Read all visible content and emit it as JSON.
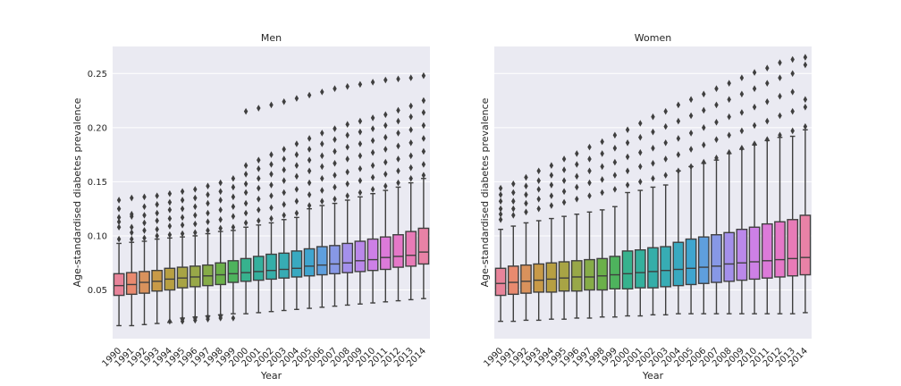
{
  "chart_data": [
    {
      "type": "box",
      "title": "Men",
      "xlabel": "Year",
      "ylabel": "Age-standardised diabetes prevalence",
      "ylim": [
        0.005,
        0.275
      ],
      "yticks": [
        "0.05",
        "0.10",
        "0.15",
        "0.20",
        "0.25"
      ],
      "ytick_values": [
        0.05,
        0.1,
        0.15,
        0.2,
        0.25
      ],
      "grid": true,
      "categories": [
        "1990",
        "1991",
        "1992",
        "1993",
        "1994",
        "1995",
        "1996",
        "1997",
        "1998",
        "1999",
        "2000",
        "2001",
        "2002",
        "2003",
        "2004",
        "2005",
        "2006",
        "2007",
        "2008",
        "2009",
        "2010",
        "2011",
        "2012",
        "2013",
        "2014"
      ],
      "boxes": [
        {
          "year": "1990",
          "whislo": 0.017,
          "q1": 0.045,
          "med": 0.054,
          "q3": 0.065,
          "whishi": 0.093,
          "fliers": [
            0.097,
            0.108,
            0.113,
            0.117,
            0.125,
            0.133
          ]
        },
        {
          "year": "1991",
          "whislo": 0.017,
          "q1": 0.046,
          "med": 0.055,
          "q3": 0.066,
          "whishi": 0.094,
          "fliers": [
            0.097,
            0.103,
            0.108,
            0.118,
            0.12,
            0.135
          ]
        },
        {
          "year": "1992",
          "whislo": 0.018,
          "q1": 0.047,
          "med": 0.057,
          "q3": 0.067,
          "whishi": 0.095,
          "fliers": [
            0.098,
            0.105,
            0.112,
            0.119,
            0.127,
            0.136
          ]
        },
        {
          "year": "1993",
          "whislo": 0.019,
          "q1": 0.049,
          "med": 0.058,
          "q3": 0.068,
          "whishi": 0.097,
          "fliers": [
            0.1,
            0.106,
            0.114,
            0.121,
            0.129,
            0.137
          ]
        },
        {
          "year": "1994",
          "whislo": 0.02,
          "q1": 0.05,
          "med": 0.06,
          "q3": 0.07,
          "whishi": 0.098,
          "fliers": [
            0.021,
            0.101,
            0.109,
            0.116,
            0.124,
            0.131,
            0.139
          ]
        },
        {
          "year": "1995",
          "whislo": 0.024,
          "q1": 0.052,
          "med": 0.061,
          "q3": 0.071,
          "whishi": 0.099,
          "fliers": [
            0.021,
            0.023,
            0.102,
            0.11,
            0.117,
            0.125,
            0.133,
            0.141
          ]
        },
        {
          "year": "1996",
          "whislo": 0.025,
          "q1": 0.053,
          "med": 0.062,
          "q3": 0.072,
          "whishi": 0.1,
          "fliers": [
            0.022,
            0.024,
            0.103,
            0.111,
            0.119,
            0.127,
            0.135,
            0.143
          ]
        },
        {
          "year": "1997",
          "whislo": 0.026,
          "q1": 0.054,
          "med": 0.063,
          "q3": 0.073,
          "whishi": 0.102,
          "fliers": [
            0.023,
            0.025,
            0.105,
            0.113,
            0.121,
            0.13,
            0.138,
            0.146
          ]
        },
        {
          "year": "1998",
          "whislo": 0.027,
          "q1": 0.055,
          "med": 0.064,
          "q3": 0.075,
          "whishi": 0.104,
          "fliers": [
            0.024,
            0.026,
            0.107,
            0.115,
            0.124,
            0.133,
            0.141,
            0.149
          ]
        },
        {
          "year": "1999",
          "whislo": 0.028,
          "q1": 0.057,
          "med": 0.065,
          "q3": 0.077,
          "whishi": 0.105,
          "fliers": [
            0.024,
            0.108,
            0.118,
            0.127,
            0.136,
            0.145,
            0.153
          ]
        },
        {
          "year": "2000",
          "whislo": 0.028,
          "q1": 0.058,
          "med": 0.066,
          "q3": 0.079,
          "whishi": 0.108,
          "fliers": [
            0.112,
            0.121,
            0.13,
            0.14,
            0.148,
            0.157,
            0.165,
            0.215
          ]
        },
        {
          "year": "2001",
          "whislo": 0.029,
          "q1": 0.059,
          "med": 0.067,
          "q3": 0.081,
          "whishi": 0.11,
          "fliers": [
            0.114,
            0.124,
            0.134,
            0.144,
            0.153,
            0.162,
            0.17,
            0.218
          ]
        },
        {
          "year": "2002",
          "whislo": 0.03,
          "q1": 0.06,
          "med": 0.068,
          "q3": 0.083,
          "whishi": 0.112,
          "fliers": [
            0.116,
            0.126,
            0.137,
            0.147,
            0.157,
            0.166,
            0.175,
            0.221
          ]
        },
        {
          "year": "2003",
          "whislo": 0.031,
          "q1": 0.061,
          "med": 0.069,
          "q3": 0.084,
          "whishi": 0.115,
          "fliers": [
            0.119,
            0.129,
            0.14,
            0.151,
            0.161,
            0.171,
            0.18,
            0.224
          ]
        },
        {
          "year": "2004",
          "whislo": 0.032,
          "q1": 0.062,
          "med": 0.07,
          "q3": 0.086,
          "whishi": 0.117,
          "fliers": [
            0.121,
            0.132,
            0.143,
            0.155,
            0.165,
            0.175,
            0.185,
            0.227
          ]
        },
        {
          "year": "2005",
          "whislo": 0.033,
          "q1": 0.063,
          "med": 0.072,
          "q3": 0.088,
          "whishi": 0.125,
          "fliers": [
            0.128,
            0.138,
            0.149,
            0.16,
            0.17,
            0.18,
            0.19,
            0.23
          ]
        },
        {
          "year": "2006",
          "whislo": 0.034,
          "q1": 0.064,
          "med": 0.073,
          "q3": 0.09,
          "whishi": 0.128,
          "fliers": [
            0.132,
            0.142,
            0.153,
            0.164,
            0.174,
            0.185,
            0.195,
            0.233
          ]
        },
        {
          "year": "2007",
          "whislo": 0.035,
          "q1": 0.065,
          "med": 0.074,
          "q3": 0.091,
          "whishi": 0.13,
          "fliers": [
            0.134,
            0.145,
            0.156,
            0.167,
            0.178,
            0.189,
            0.199,
            0.236
          ]
        },
        {
          "year": "2008",
          "whislo": 0.036,
          "q1": 0.066,
          "med": 0.075,
          "q3": 0.093,
          "whishi": 0.133,
          "fliers": [
            0.137,
            0.148,
            0.159,
            0.171,
            0.182,
            0.193,
            0.203,
            0.238
          ]
        },
        {
          "year": "2009",
          "whislo": 0.037,
          "q1": 0.067,
          "med": 0.077,
          "q3": 0.095,
          "whishi": 0.136,
          "fliers": [
            0.14,
            0.151,
            0.162,
            0.174,
            0.185,
            0.196,
            0.206,
            0.24
          ]
        },
        {
          "year": "2010",
          "whislo": 0.038,
          "q1": 0.068,
          "med": 0.078,
          "q3": 0.097,
          "whishi": 0.139,
          "fliers": [
            0.143,
            0.154,
            0.165,
            0.177,
            0.188,
            0.199,
            0.209,
            0.242
          ]
        },
        {
          "year": "2011",
          "whislo": 0.039,
          "q1": 0.069,
          "med": 0.08,
          "q3": 0.099,
          "whishi": 0.142,
          "fliers": [
            0.146,
            0.157,
            0.168,
            0.18,
            0.191,
            0.202,
            0.212,
            0.244
          ]
        },
        {
          "year": "2012",
          "whislo": 0.04,
          "q1": 0.071,
          "med": 0.081,
          "q3": 0.101,
          "whishi": 0.145,
          "fliers": [
            0.149,
            0.16,
            0.171,
            0.183,
            0.195,
            0.206,
            0.216,
            0.245
          ]
        },
        {
          "year": "2013",
          "whislo": 0.041,
          "q1": 0.072,
          "med": 0.082,
          "q3": 0.104,
          "whishi": 0.149,
          "fliers": [
            0.153,
            0.163,
            0.174,
            0.186,
            0.198,
            0.21,
            0.22,
            0.246
          ]
        },
        {
          "year": "2014",
          "whislo": 0.042,
          "q1": 0.074,
          "med": 0.085,
          "q3": 0.107,
          "whishi": 0.153,
          "fliers": [
            0.156,
            0.166,
            0.178,
            0.19,
            0.202,
            0.214,
            0.225,
            0.248
          ]
        }
      ]
    },
    {
      "type": "box",
      "title": "Women",
      "xlabel": "Year",
      "ylabel": "Age-standardised diabetes prevalence",
      "ylim": [
        0.005,
        0.275
      ],
      "yticks": [
        "0.05",
        "0.10",
        "0.15",
        "0.20",
        "0.25"
      ],
      "ytick_values": [
        0.05,
        0.1,
        0.15,
        0.2,
        0.25
      ],
      "grid": true,
      "categories": [
        "1990",
        "1991",
        "1992",
        "1993",
        "1994",
        "1995",
        "1996",
        "1997",
        "1998",
        "1999",
        "2000",
        "2001",
        "2002",
        "2003",
        "2004",
        "2005",
        "2006",
        "2007",
        "2008",
        "2009",
        "2010",
        "2011",
        "2012",
        "2013",
        "2014"
      ],
      "boxes": [
        {
          "year": "1990",
          "whislo": 0.021,
          "q1": 0.045,
          "med": 0.056,
          "q3": 0.07,
          "whishi": 0.106,
          "fliers": [
            0.115,
            0.12,
            0.125,
            0.132,
            0.138,
            0.144
          ]
        },
        {
          "year": "1991",
          "whislo": 0.021,
          "q1": 0.046,
          "med": 0.057,
          "q3": 0.072,
          "whishi": 0.109,
          "fliers": [
            0.119,
            0.125,
            0.132,
            0.14,
            0.148
          ]
        },
        {
          "year": "1992",
          "whislo": 0.022,
          "q1": 0.047,
          "med": 0.058,
          "q3": 0.073,
          "whishi": 0.112,
          "fliers": [
            0.122,
            0.13,
            0.138,
            0.146,
            0.154
          ]
        },
        {
          "year": "1993",
          "whislo": 0.022,
          "q1": 0.048,
          "med": 0.059,
          "q3": 0.074,
          "whishi": 0.114,
          "fliers": [
            0.125,
            0.134,
            0.143,
            0.151,
            0.16
          ]
        },
        {
          "year": "1994",
          "whislo": 0.023,
          "q1": 0.048,
          "med": 0.06,
          "q3": 0.075,
          "whishi": 0.116,
          "fliers": [
            0.128,
            0.137,
            0.147,
            0.156,
            0.165
          ]
        },
        {
          "year": "1995",
          "whislo": 0.023,
          "q1": 0.049,
          "med": 0.061,
          "q3": 0.076,
          "whishi": 0.118,
          "fliers": [
            0.131,
            0.141,
            0.151,
            0.161,
            0.171
          ]
        },
        {
          "year": "1996",
          "whislo": 0.024,
          "q1": 0.049,
          "med": 0.062,
          "q3": 0.077,
          "whishi": 0.12,
          "fliers": [
            0.134,
            0.145,
            0.155,
            0.166,
            0.176
          ]
        },
        {
          "year": "1997",
          "whislo": 0.024,
          "q1": 0.05,
          "med": 0.062,
          "q3": 0.078,
          "whishi": 0.122,
          "fliers": [
            0.137,
            0.149,
            0.16,
            0.171,
            0.182
          ]
        },
        {
          "year": "1998",
          "whislo": 0.025,
          "q1": 0.05,
          "med": 0.063,
          "q3": 0.079,
          "whishi": 0.124,
          "fliers": [
            0.14,
            0.152,
            0.164,
            0.176,
            0.187
          ]
        },
        {
          "year": "1999",
          "whislo": 0.025,
          "q1": 0.051,
          "med": 0.064,
          "q3": 0.081,
          "whishi": 0.127,
          "fliers": [
            0.143,
            0.156,
            0.168,
            0.181,
            0.193
          ]
        },
        {
          "year": "2000",
          "whislo": 0.026,
          "q1": 0.051,
          "med": 0.065,
          "q3": 0.086,
          "whishi": 0.14,
          "fliers": [
            0.147,
            0.16,
            0.173,
            0.186,
            0.198
          ]
        },
        {
          "year": "2001",
          "whislo": 0.026,
          "q1": 0.052,
          "med": 0.066,
          "q3": 0.087,
          "whishi": 0.142,
          "fliers": [
            0.15,
            0.164,
            0.177,
            0.191,
            0.204
          ]
        },
        {
          "year": "2002",
          "whislo": 0.027,
          "q1": 0.052,
          "med": 0.067,
          "q3": 0.089,
          "whishi": 0.145,
          "fliers": [
            0.153,
            0.167,
            0.181,
            0.196,
            0.21
          ]
        },
        {
          "year": "2003",
          "whislo": 0.027,
          "q1": 0.053,
          "med": 0.068,
          "q3": 0.09,
          "whishi": 0.147,
          "fliers": [
            0.156,
            0.171,
            0.186,
            0.201,
            0.215
          ]
        },
        {
          "year": "2004",
          "whislo": 0.028,
          "q1": 0.054,
          "med": 0.069,
          "q3": 0.094,
          "whishi": 0.16,
          "fliers": [
            0.16,
            0.175,
            0.19,
            0.206,
            0.221
          ]
        },
        {
          "year": "2005",
          "whislo": 0.028,
          "q1": 0.055,
          "med": 0.07,
          "q3": 0.097,
          "whishi": 0.164,
          "fliers": [
            0.164,
            0.18,
            0.195,
            0.211,
            0.226
          ]
        },
        {
          "year": "2006",
          "whislo": 0.028,
          "q1": 0.056,
          "med": 0.071,
          "q3": 0.099,
          "whishi": 0.167,
          "fliers": [
            0.168,
            0.184,
            0.2,
            0.216,
            0.231
          ]
        },
        {
          "year": "2007",
          "whislo": 0.028,
          "q1": 0.057,
          "med": 0.072,
          "q3": 0.101,
          "whishi": 0.17,
          "fliers": [
            0.172,
            0.189,
            0.205,
            0.221,
            0.236
          ]
        },
        {
          "year": "2008",
          "whislo": 0.028,
          "q1": 0.058,
          "med": 0.074,
          "q3": 0.103,
          "whishi": 0.176,
          "fliers": [
            0.177,
            0.193,
            0.21,
            0.226,
            0.241
          ]
        },
        {
          "year": "2009",
          "whislo": 0.028,
          "q1": 0.059,
          "med": 0.075,
          "q3": 0.106,
          "whishi": 0.18,
          "fliers": [
            0.181,
            0.197,
            0.214,
            0.231,
            0.246
          ]
        },
        {
          "year": "2010",
          "whislo": 0.028,
          "q1": 0.06,
          "med": 0.076,
          "q3": 0.108,
          "whishi": 0.184,
          "fliers": [
            0.185,
            0.202,
            0.219,
            0.236,
            0.251
          ]
        },
        {
          "year": "2011",
          "whislo": 0.028,
          "q1": 0.061,
          "med": 0.077,
          "q3": 0.111,
          "whishi": 0.188,
          "fliers": [
            0.189,
            0.206,
            0.224,
            0.241,
            0.255
          ]
        },
        {
          "year": "2012",
          "whislo": 0.028,
          "q1": 0.062,
          "med": 0.078,
          "q3": 0.113,
          "whishi": 0.191,
          "fliers": [
            0.193,
            0.211,
            0.229,
            0.246,
            0.26
          ]
        },
        {
          "year": "2013",
          "whislo": 0.028,
          "q1": 0.063,
          "med": 0.079,
          "q3": 0.115,
          "whishi": 0.192,
          "fliers": [
            0.197,
            0.215,
            0.233,
            0.25,
            0.263
          ]
        },
        {
          "year": "2014",
          "whislo": 0.029,
          "q1": 0.064,
          "med": 0.08,
          "q3": 0.119,
          "whishi": 0.198,
          "fliers": [
            0.201,
            0.219,
            0.226,
            0.258,
            0.265
          ]
        }
      ]
    }
  ],
  "colors": {
    "plot_bg": "#eaeaf2",
    "grid": "#ffffff",
    "box_edge": "#3f3f3f",
    "palette": [
      "#e8849a",
      "#e98a6f",
      "#d9925c",
      "#c89a48",
      "#b79f42",
      "#a8a445",
      "#98a848",
      "#86ac48",
      "#6bb04a",
      "#4eb35d",
      "#37b28e",
      "#34b09d",
      "#35aea9",
      "#37acb4",
      "#39a9c0",
      "#3fa5cf",
      "#5f9fdd",
      "#8798e6",
      "#a490eb",
      "#bb88ea",
      "#cd80e6",
      "#dc7ad9",
      "#e578c8",
      "#e87bb7",
      "#e882a6"
    ]
  }
}
